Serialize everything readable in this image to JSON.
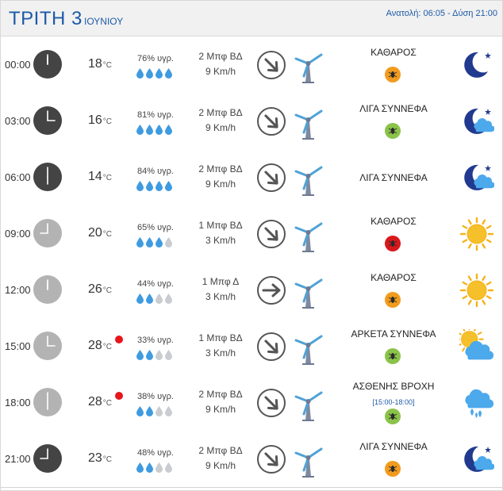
{
  "header": {
    "day": "ΤΡΙΤΗ 3",
    "month": "ΙΟΥΝΙΟΥ",
    "sun_times": "Ανατολή: 06:05  - Δύση 21:00"
  },
  "colors": {
    "accent": "#1e5aa8",
    "clock_night": "#444444",
    "clock_day": "#b3b3b3",
    "uv_green": "#8bc34a",
    "uv_orange": "#f19b1f",
    "uv_red": "#d9181c",
    "heat_dot": "#e8151b"
  },
  "rows": [
    {
      "time": "00:00",
      "clock": "night",
      "temp": "18",
      "unit": "°C",
      "hot": false,
      "humidity": "76% υγρ.",
      "drops": 4,
      "wind_beaufort": "2 Μπφ ΒΔ",
      "wind_kmh": "9 Km/h",
      "direction": "arrow-down-right-icon",
      "condition": "ΚΑΘΑΡΟΣ",
      "time_range": "",
      "uv": "orange",
      "weather_icon": "moon-icon"
    },
    {
      "time": "03:00",
      "clock": "night",
      "temp": "16",
      "unit": "°C",
      "hot": false,
      "humidity": "81% υγρ.",
      "drops": 4,
      "wind_beaufort": "2 Μπφ ΒΔ",
      "wind_kmh": "9 Km/h",
      "direction": "arrow-down-right-icon",
      "condition": "ΛΙΓΑ ΣΥΝΝΕΦΑ",
      "time_range": "",
      "uv": "green",
      "weather_icon": "moon-cloud-icon"
    },
    {
      "time": "06:00",
      "clock": "night",
      "temp": "14",
      "unit": "°C",
      "hot": false,
      "humidity": "84% υγρ.",
      "drops": 4,
      "wind_beaufort": "2 Μπφ ΒΔ",
      "wind_kmh": "9 Km/h",
      "direction": "arrow-down-right-icon",
      "condition": "ΛΙΓΑ ΣΥΝΝΕΦΑ",
      "time_range": "",
      "uv": "none",
      "weather_icon": "moon-cloud-icon"
    },
    {
      "time": "09:00",
      "clock": "day",
      "temp": "20",
      "unit": "°C",
      "hot": false,
      "humidity": "65% υγρ.",
      "drops": 3,
      "wind_beaufort": "1 Μπφ ΒΔ",
      "wind_kmh": "3 Km/h",
      "direction": "arrow-down-right-icon",
      "condition": "ΚΑΘΑΡΟΣ",
      "time_range": "",
      "uv": "red",
      "weather_icon": "sun-icon"
    },
    {
      "time": "12:00",
      "clock": "day",
      "temp": "26",
      "unit": "°C",
      "hot": false,
      "humidity": "44% υγρ.",
      "drops": 2,
      "wind_beaufort": "1 Μπφ Δ",
      "wind_kmh": "3 Km/h",
      "direction": "arrow-right-icon",
      "condition": "ΚΑΘΑΡΟΣ",
      "time_range": "",
      "uv": "orange",
      "weather_icon": "sun-icon"
    },
    {
      "time": "15:00",
      "clock": "day",
      "temp": "28",
      "unit": "°C",
      "hot": true,
      "humidity": "33% υγρ.",
      "drops": 2,
      "wind_beaufort": "1 Μπφ ΒΔ",
      "wind_kmh": "3 Km/h",
      "direction": "arrow-down-right-icon",
      "condition": "ΑΡΚΕΤΑ ΣΥΝΝΕΦΑ",
      "time_range": "",
      "uv": "green",
      "weather_icon": "sun-cloud-icon"
    },
    {
      "time": "18:00",
      "clock": "day",
      "temp": "28",
      "unit": "°C",
      "hot": true,
      "humidity": "38% υγρ.",
      "drops": 2,
      "wind_beaufort": "2 Μπφ ΒΔ",
      "wind_kmh": "9 Km/h",
      "direction": "arrow-down-right-icon",
      "condition": "ΑΣΘΕΝΗΣ ΒΡΟΧΗ",
      "time_range": "[15:00-18:00]",
      "uv": "green",
      "weather_icon": "rain-cloud-icon"
    },
    {
      "time": "21:00",
      "clock": "night",
      "temp": "23",
      "unit": "°C",
      "hot": false,
      "humidity": "48% υγρ.",
      "drops": 2,
      "wind_beaufort": "2 Μπφ ΒΔ",
      "wind_kmh": "9 Km/h",
      "direction": "arrow-down-right-icon",
      "condition": "ΛΙΓΑ ΣΥΝΝΕΦΑ",
      "time_range": "",
      "uv": "orange",
      "weather_icon": "moon-cloud-icon"
    }
  ]
}
